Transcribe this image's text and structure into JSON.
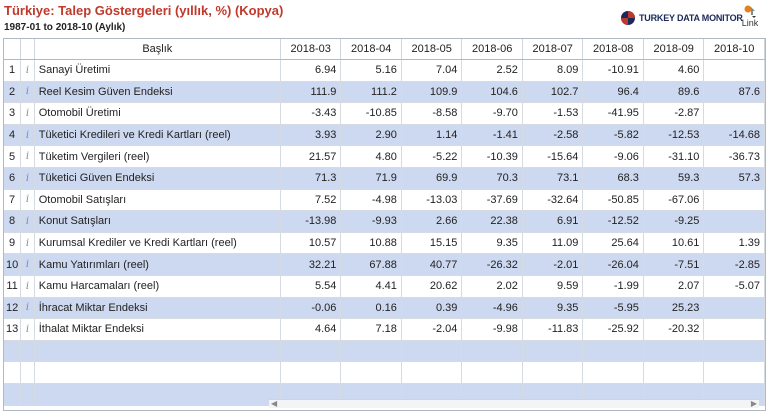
{
  "header": {
    "title": "Türkiye: Talep Göstergeleri (yıllık, %) (Kopya)",
    "subtitle": "1987-01 to 2018-10 (Aylık)",
    "brand": "TURKEY DATA MONITOR",
    "link_label": "Link"
  },
  "colors": {
    "title": "#c0392b",
    "row_alt": "#cdd9f0",
    "brand": "#1b2a5a"
  },
  "icons": {
    "info": "info-icon",
    "brand_logo": "globe-logo-icon",
    "link": "link-icon"
  },
  "table": {
    "name_header": "Başlık",
    "columns": [
      "2018-03",
      "2018-04",
      "2018-05",
      "2018-06",
      "2018-07",
      "2018-08",
      "2018-09",
      "2018-10"
    ],
    "info_glyph": "i",
    "rows": [
      {
        "n": "1",
        "name": "Sanayi Üretimi",
        "values": [
          "6.94",
          "5.16",
          "7.04",
          "2.52",
          "8.09",
          "-10.91",
          "4.60",
          ""
        ]
      },
      {
        "n": "2",
        "name": "Reel Kesim Güven Endeksi",
        "values": [
          "111.9",
          "111.2",
          "109.9",
          "104.6",
          "102.7",
          "96.4",
          "89.6",
          "87.6"
        ]
      },
      {
        "n": "3",
        "name": "Otomobil Üretimi",
        "values": [
          "-3.43",
          "-10.85",
          "-8.58",
          "-9.70",
          "-1.53",
          "-41.95",
          "-2.87",
          ""
        ]
      },
      {
        "n": "4",
        "name": "Tüketici Kredileri ve Kredi Kartları (reel)",
        "values": [
          "3.93",
          "2.90",
          "1.14",
          "-1.41",
          "-2.58",
          "-5.82",
          "-12.53",
          "-14.68"
        ]
      },
      {
        "n": "5",
        "name": "Tüketim Vergileri (reel)",
        "values": [
          "21.57",
          "4.80",
          "-5.22",
          "-10.39",
          "-15.64",
          "-9.06",
          "-31.10",
          "-36.73"
        ]
      },
      {
        "n": "6",
        "name": "Tüketici Güven Endeksi",
        "values": [
          "71.3",
          "71.9",
          "69.9",
          "70.3",
          "73.1",
          "68.3",
          "59.3",
          "57.3"
        ]
      },
      {
        "n": "7",
        "name": "Otomobil Satışları",
        "values": [
          "7.52",
          "-4.98",
          "-13.03",
          "-37.69",
          "-32.64",
          "-50.85",
          "-67.06",
          ""
        ]
      },
      {
        "n": "8",
        "name": "Konut Satışları",
        "values": [
          "-13.98",
          "-9.93",
          "2.66",
          "22.38",
          "6.91",
          "-12.52",
          "-9.25",
          ""
        ]
      },
      {
        "n": "9",
        "name": "Kurumsal Krediler ve Kredi Kartları (reel)",
        "values": [
          "10.57",
          "10.88",
          "15.15",
          "9.35",
          "11.09",
          "25.64",
          "10.61",
          "1.39"
        ]
      },
      {
        "n": "10",
        "name": "Kamu Yatırımları (reel)",
        "values": [
          "32.21",
          "67.88",
          "40.77",
          "-26.32",
          "-2.01",
          "-26.04",
          "-7.51",
          "-2.85"
        ]
      },
      {
        "n": "11",
        "name": "Kamu Harcamaları (reel)",
        "values": [
          "5.54",
          "4.41",
          "20.62",
          "2.02",
          "9.59",
          "-1.99",
          "2.07",
          "-5.07"
        ]
      },
      {
        "n": "12",
        "name": "İhracat Miktar Endeksi",
        "values": [
          "-0.06",
          "0.16",
          "0.39",
          "-4.96",
          "9.35",
          "-5.95",
          "25.23",
          ""
        ]
      },
      {
        "n": "13",
        "name": "İthalat Miktar Endeksi",
        "values": [
          "4.64",
          "7.18",
          "-2.04",
          "-9.98",
          "-11.83",
          "-25.92",
          "-20.32",
          ""
        ]
      }
    ]
  }
}
